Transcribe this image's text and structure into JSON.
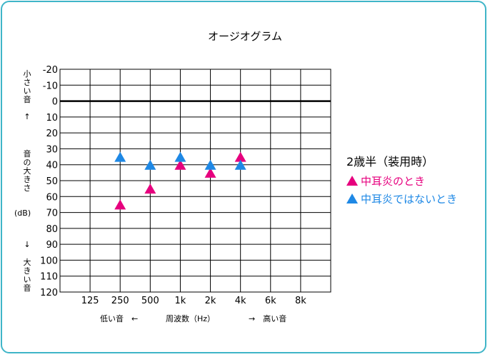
{
  "title": "オージオグラム",
  "y_label_top": "小さい音",
  "y_arrow_up": "↑",
  "y_label_middle": "音の大きさ",
  "y_unit": "(dB)",
  "y_arrow_down": "↓",
  "y_label_bottom": "大きい音",
  "x_note_low": "低い音　←",
  "x_note_center": "周波数（Hz）",
  "x_note_high": "→　高い音",
  "legend": {
    "title": "2歳半（装用時）",
    "items": [
      {
        "label": "中耳炎のとき",
        "color": "#e6007e"
      },
      {
        "label": "中耳炎ではないとき",
        "color": "#1e88e5"
      }
    ]
  },
  "colors": {
    "frame": "#3fb5c8",
    "grid": "#000000"
  },
  "chart_data": {
    "type": "scatter",
    "title": "オージオグラム",
    "categories": [
      "125",
      "250",
      "500",
      "1k",
      "2k",
      "4k",
      "6k",
      "8k"
    ],
    "y_ticks": [
      -20,
      -10,
      0,
      10,
      20,
      30,
      40,
      50,
      60,
      70,
      80,
      90,
      100,
      110,
      120
    ],
    "ylim": [
      -20,
      120
    ],
    "y_inverted": true,
    "grid": true,
    "series": [
      {
        "name": "中耳炎のとき",
        "color": "#e6007e",
        "marker": "triangle",
        "points": [
          {
            "x": "250",
            "y": 65
          },
          {
            "x": "500",
            "y": 55
          },
          {
            "x": "1k",
            "y": 40
          },
          {
            "x": "2k",
            "y": 45
          },
          {
            "x": "4k",
            "y": 35
          }
        ]
      },
      {
        "name": "中耳炎ではないとき",
        "color": "#1e88e5",
        "marker": "triangle",
        "points": [
          {
            "x": "250",
            "y": 35
          },
          {
            "x": "500",
            "y": 40
          },
          {
            "x": "1k",
            "y": 35
          },
          {
            "x": "2k",
            "y": 40
          },
          {
            "x": "4k",
            "y": 40
          }
        ]
      }
    ]
  }
}
